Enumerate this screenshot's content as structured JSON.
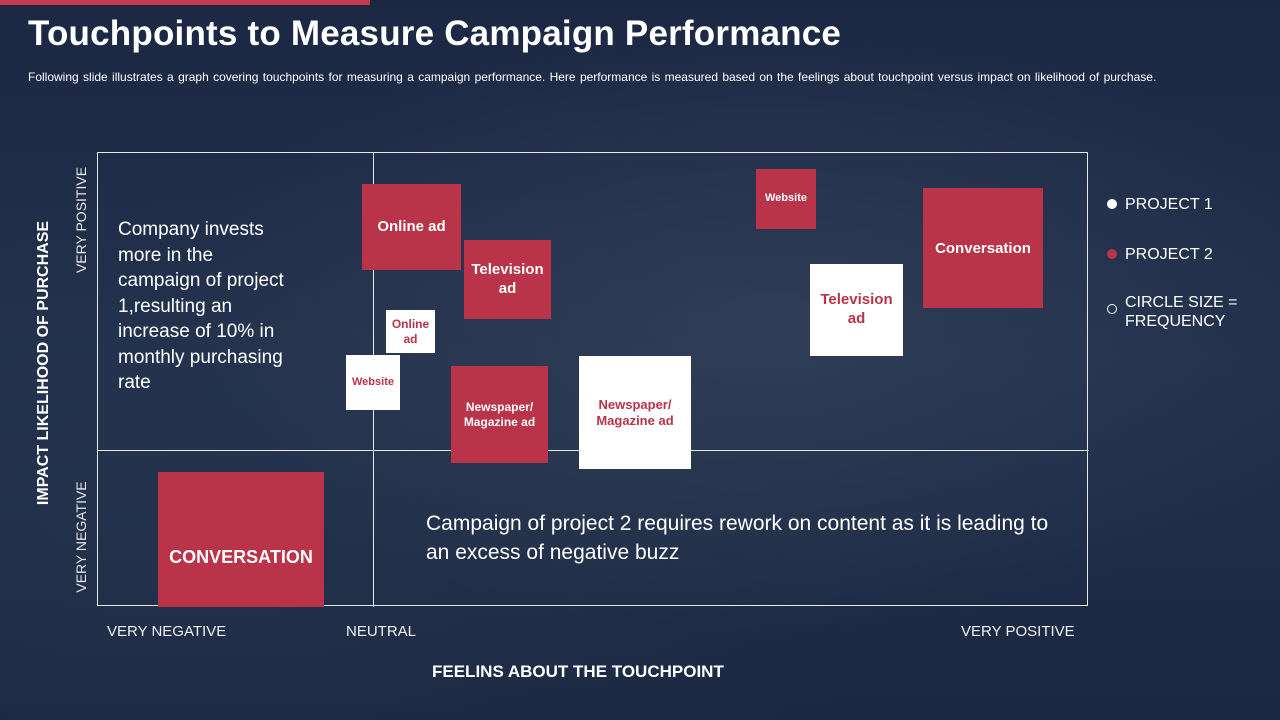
{
  "header": {
    "title": "Touchpoints to Measure Campaign Performance",
    "subtitle": "Following slide illustrates a graph covering touchpoints for measuring a campaign performance. Here performance is measured based on the feelings about touchpoint versus impact on likelihood of purchase."
  },
  "axes": {
    "y_title": "IMPACT LIKELIHOOD OF PURCHASE",
    "y_top": "VERY POSITIVE",
    "y_bottom": "VERY NEGATIVE",
    "x_left": "VERY NEGATIVE",
    "x_mid": "NEUTRAL",
    "x_right": "VERY POSITIVE",
    "x_title": "FEELINS ABOUT THE TOUCHPOINT"
  },
  "touchpoints": {
    "online_ad_p2": "Online ad",
    "television_ad_p2": "Television ad",
    "website_p2": "Website",
    "conversation_p2": "Conversation",
    "online_ad_p1": "Online ad",
    "website_p1": "Website",
    "newspaper_p2": "Newspaper/ Magazine ad",
    "newspaper_p1": "Newspaper/ Magazine ad",
    "television_ad_p1": "Television ad",
    "conversation_p2_negative": "CONVERSATION"
  },
  "notes": {
    "project1": "Company invests more in the campaign of project 1,resulting an increase of 10% in monthly purchasing rate",
    "project2": "Campaign of project 2 requires rework on content as it is leading to an excess of negative buzz"
  },
  "legend": {
    "project1": "PROJECT 1",
    "project2": "PROJECT 2",
    "circle_size": "CIRCLE SIZE = FREQUENCY"
  },
  "colors": {
    "background": "#1e2b45",
    "project1": "#ffffff",
    "project2": "#b93448",
    "accent_bar": "#c0394f"
  }
}
